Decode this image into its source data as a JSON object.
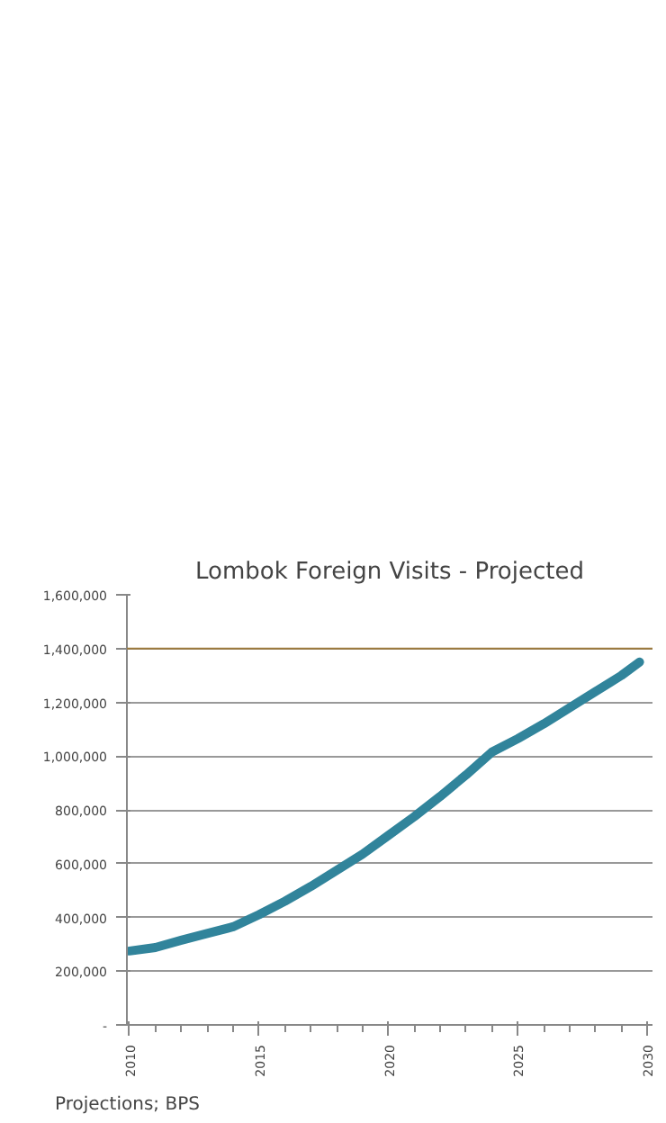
{
  "chart_data": {
    "type": "line",
    "title": "Lombok Foreign Visits - Projected",
    "x": [
      2010,
      2011,
      2012,
      2013,
      2014,
      2015,
      2016,
      2017,
      2018,
      2019,
      2020,
      2021,
      2022,
      2023,
      2024,
      2025,
      2026,
      2027,
      2028,
      2029,
      2029.7
    ],
    "series": [
      {
        "color": "#31849b",
        "values": [
          275000,
          288000,
          315000,
          340000,
          365000,
          410000,
          460000,
          515000,
          575000,
          635000,
          705000,
          775000,
          850000,
          930000,
          1015000,
          1065000,
          1120000,
          1180000,
          1240000,
          1300000,
          1350000
        ]
      }
    ],
    "xlim": [
      2009.9,
      2030.2
    ],
    "xticks": [
      2010,
      2015,
      2020,
      2025,
      2030
    ],
    "ylim": [
      0,
      1600000
    ],
    "yticks": [
      {
        "value": 0,
        "label": "-"
      },
      {
        "value": 200000,
        "label": "200,000"
      },
      {
        "value": 400000,
        "label": "400,000"
      },
      {
        "value": 600000,
        "label": "600,000"
      },
      {
        "value": 800000,
        "label": "800,000"
      },
      {
        "value": 1000000,
        "label": "1,000,000"
      },
      {
        "value": 1200000,
        "label": "1,200,000"
      },
      {
        "value": 1400000,
        "label": "1,400,000"
      },
      {
        "value": 1600000,
        "label": "1,600,000"
      }
    ],
    "ref_lines": [
      {
        "axis": "y",
        "value": 1400000,
        "color": "#9c7a3c"
      }
    ],
    "grid": "y",
    "marker": "none",
    "line_style": "solid",
    "annotations": [
      "Projections; BPS"
    ]
  }
}
